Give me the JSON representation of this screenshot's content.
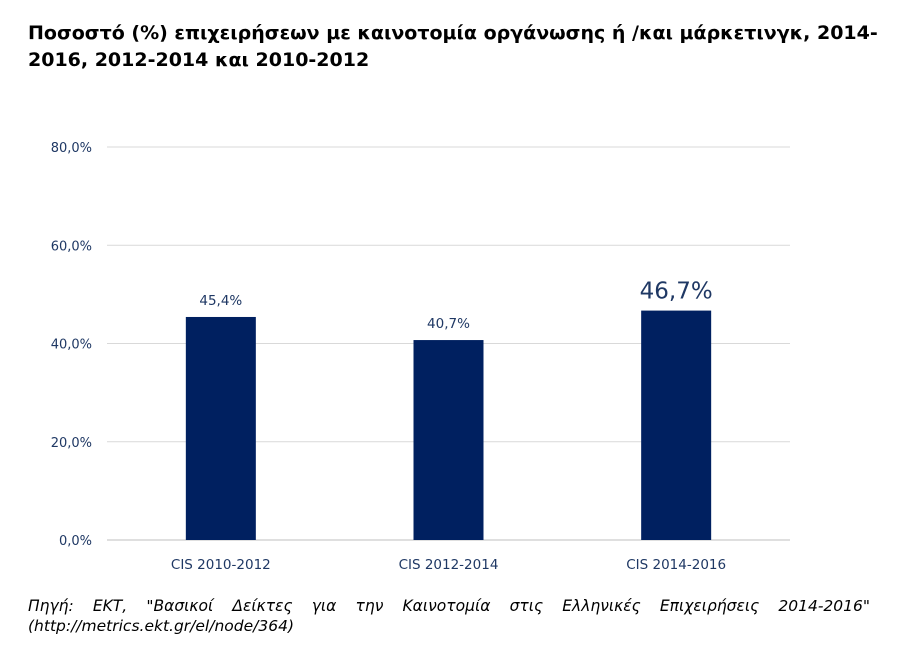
{
  "chart_data": {
    "type": "bar",
    "title": "Ποσοστό (%) επιχειρήσεων με καινοτομία οργάνωσης ή /και μάρκετινγκ, 2014-2016, 2012-2014 και 2010-2012",
    "categories": [
      "CIS 2010-2012",
      "CIS 2012-2014",
      "CIS 2014-2016"
    ],
    "values": [
      45.4,
      40.7,
      46.7
    ],
    "data_labels": [
      "45,4%",
      "40,7%",
      "46,7%"
    ],
    "ylim": [
      0,
      80
    ],
    "yticks": [
      0,
      20,
      40,
      60,
      80
    ],
    "ytick_labels": [
      "0,0%",
      "20,0%",
      "40,0%",
      "60,0%",
      "80,0%"
    ],
    "xlabel": "",
    "ylabel": "",
    "grid": true,
    "bar_color": "#002060",
    "label_color": "#1F3864"
  },
  "source": {
    "text": "Πηγή: ΕΚΤ, \"Βασικοί Δείκτες για την Καινοτομία στις Ελληνικές Επιχειρήσεις 2014-2016\"",
    "url": "(http://metrics.ekt.gr/el/node/364)"
  }
}
